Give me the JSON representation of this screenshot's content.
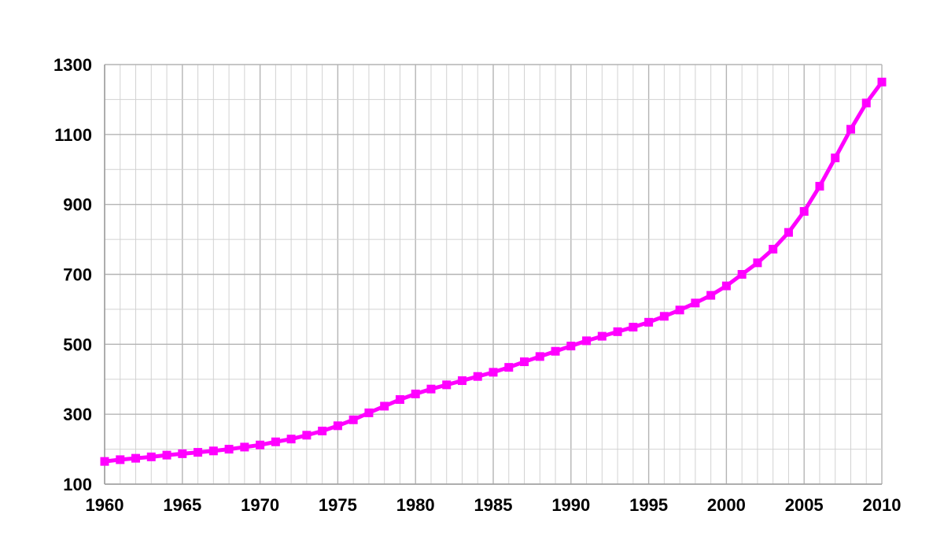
{
  "chart_data": {
    "type": "line",
    "title": "",
    "xlabel": "",
    "ylabel": "",
    "xlim": [
      1960,
      2010
    ],
    "ylim": [
      100,
      1300
    ],
    "x_ticks": [
      1960,
      1965,
      1970,
      1975,
      1980,
      1985,
      1990,
      1995,
      2000,
      2005,
      2010
    ],
    "y_ticks": [
      100,
      300,
      500,
      700,
      900,
      1100,
      1300
    ],
    "grid": true,
    "legend": "none",
    "series": [
      {
        "color": "#ff00ff",
        "marker": "square",
        "x": [
          1960,
          1961,
          1962,
          1963,
          1964,
          1965,
          1966,
          1967,
          1968,
          1969,
          1970,
          1971,
          1972,
          1973,
          1974,
          1975,
          1976,
          1977,
          1978,
          1979,
          1980,
          1981,
          1982,
          1983,
          1984,
          1985,
          1986,
          1987,
          1988,
          1989,
          1990,
          1991,
          1992,
          1993,
          1994,
          1995,
          1996,
          1997,
          1998,
          1999,
          2000,
          2001,
          2002,
          2003,
          2004,
          2005,
          2006,
          2007,
          2008,
          2009,
          2010
        ],
        "values": [
          165,
          170,
          174,
          178,
          183,
          187,
          191,
          195,
          200,
          206,
          212,
          221,
          229,
          240,
          252,
          267,
          284,
          304,
          323,
          342,
          358,
          372,
          384,
          396,
          408,
          420,
          434,
          450,
          465,
          480,
          495,
          510,
          523,
          536,
          549,
          563,
          580,
          598,
          618,
          640,
          667,
          700,
          733,
          772,
          820,
          880,
          952,
          1033,
          1115,
          1190,
          1250
        ]
      }
    ]
  }
}
